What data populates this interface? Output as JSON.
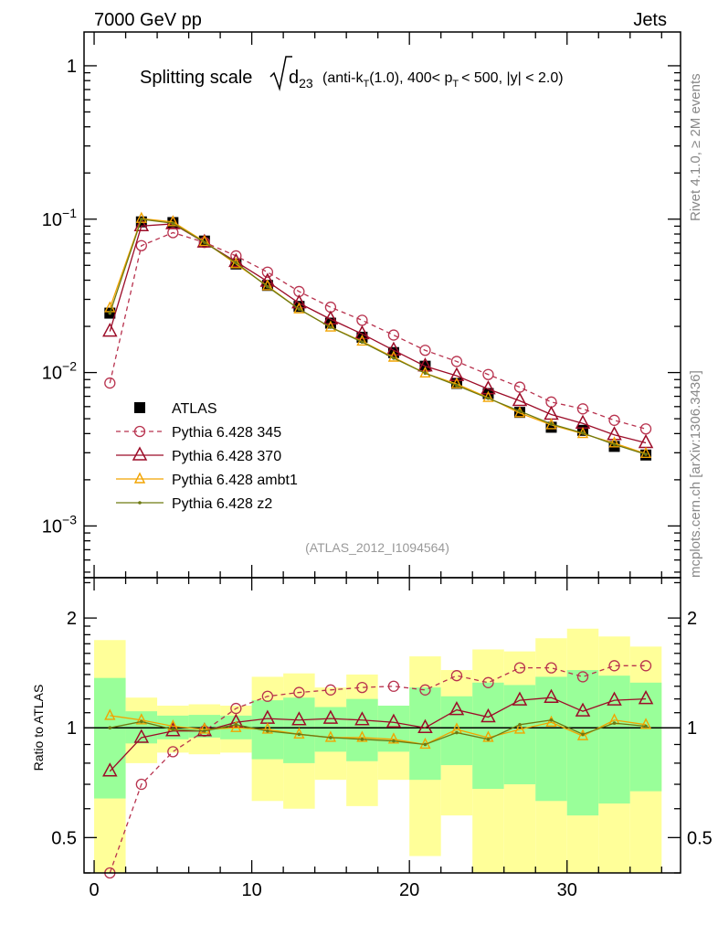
{
  "header": {
    "left": "7000 GeV pp",
    "right": "Jets"
  },
  "side_text": {
    "upper": "Rivet 4.1.0, ≥ 2M events",
    "lower": "mcplots.cern.ch [arXiv:1306.3436]"
  },
  "title": {
    "main": "Splitting scale",
    "var": "d",
    "var_sub": "23",
    "p1": "(anti-k",
    "p1_sub": "T",
    "p2": "(1.0), 400< p",
    "p2_sub": "T",
    "p3": "< 500, |y| < 2.0)"
  },
  "watermark": "(ATLAS_2012_I1094564)",
  "colors": {
    "band_total": "#ffff99",
    "band_stat": "#99ff99"
  },
  "chart_data": {
    "type": "line",
    "x": [
      1,
      3,
      5,
      7,
      9,
      11,
      13,
      15,
      17,
      19,
      21,
      23,
      25,
      27,
      29,
      31,
      33,
      35
    ],
    "xlim": [
      -0.64,
      37.2
    ],
    "xticks": [
      "0",
      "10",
      "20",
      "30"
    ],
    "main": {
      "yscale": "log",
      "ylim": [
        0.00046,
        1.66
      ],
      "yticks": [
        {
          "base": "1",
          "exp": ""
        },
        {
          "base": "10",
          "exp": "−1"
        },
        {
          "base": "10",
          "exp": "−2"
        },
        {
          "base": "10",
          "exp": "−3"
        }
      ]
    },
    "ratio": {
      "ylabel": "Ratio to ATLAS",
      "yscale": "log",
      "ylim": [
        0.4,
        2.58
      ],
      "yticks": [
        "2",
        "1",
        "0.5"
      ],
      "bands": {
        "edges": [
          0,
          2,
          4,
          6,
          8,
          10,
          12,
          14,
          16,
          18,
          20,
          22,
          24,
          26,
          28,
          30,
          32,
          34,
          36
        ],
        "total_hi": [
          1.74,
          1.21,
          1.15,
          1.16,
          1.15,
          1.38,
          1.41,
          1.29,
          1.4,
          1.15,
          1.57,
          1.44,
          1.64,
          1.62,
          1.76,
          1.87,
          1.78,
          1.67
        ],
        "total_lo": [
          0.3,
          0.8,
          0.855,
          0.846,
          0.855,
          0.63,
          0.6,
          0.72,
          0.61,
          0.72,
          0.445,
          0.575,
          0.3,
          0.3,
          0.3,
          0.3,
          0.3,
          0.3
        ],
        "stat_hi": [
          1.37,
          1.11,
          1.08,
          1.085,
          1.08,
          1.19,
          1.21,
          1.14,
          1.2,
          1.15,
          1.29,
          1.22,
          1.33,
          1.31,
          1.38,
          1.44,
          1.39,
          1.33
        ],
        "stat_lo": [
          0.64,
          0.906,
          0.93,
          0.94,
          0.93,
          0.82,
          0.8,
          0.86,
          0.81,
          0.86,
          0.72,
          0.79,
          0.68,
          0.7,
          0.63,
          0.575,
          0.62,
          0.67
        ]
      }
    },
    "series": [
      {
        "name": "ATLAS",
        "kind": "data",
        "color": "#000000",
        "values": [
          0.0244,
          0.096,
          0.095,
          0.072,
          0.051,
          0.037,
          0.027,
          0.021,
          0.017,
          0.0135,
          0.011,
          0.0085,
          0.0073,
          0.0055,
          0.0044,
          0.0042,
          0.0033,
          0.0029
        ]
      },
      {
        "name": "Pythia 6.428 345",
        "kind": "circle-dashed",
        "color": "#b8324e",
        "ratio": [
          0.35,
          0.7,
          0.86,
          0.98,
          1.13,
          1.22,
          1.25,
          1.27,
          1.29,
          1.3,
          1.27,
          1.39,
          1.33,
          1.46,
          1.46,
          1.38,
          1.48,
          1.48
        ]
      },
      {
        "name": "Pythia 6.428 370",
        "kind": "triangle",
        "color": "#9c0c28",
        "ratio": [
          0.76,
          0.94,
          0.98,
          0.98,
          1.035,
          1.06,
          1.05,
          1.06,
          1.05,
          1.035,
          1.0,
          1.12,
          1.07,
          1.19,
          1.21,
          1.11,
          1.19,
          1.2
        ]
      },
      {
        "name": "Pythia 6.428 ambt1",
        "kind": "triangle-small",
        "color": "#f2a400",
        "ratio": [
          1.08,
          1.05,
          1.01,
          0.99,
          1.0,
          0.99,
          0.96,
          0.94,
          0.94,
          0.93,
          0.9,
          0.99,
          0.94,
          0.99,
          1.035,
          0.95,
          1.05,
          1.02
        ]
      },
      {
        "name": "Pythia 6.428 z2",
        "kind": "dot",
        "color": "#6e7a12",
        "ratio": [
          1.0,
          1.04,
          0.99,
          0.98,
          1.02,
          0.98,
          0.96,
          0.94,
          0.93,
          0.92,
          0.9,
          0.97,
          0.93,
          1.02,
          1.05,
          0.96,
          1.03,
          1.01
        ]
      }
    ]
  }
}
